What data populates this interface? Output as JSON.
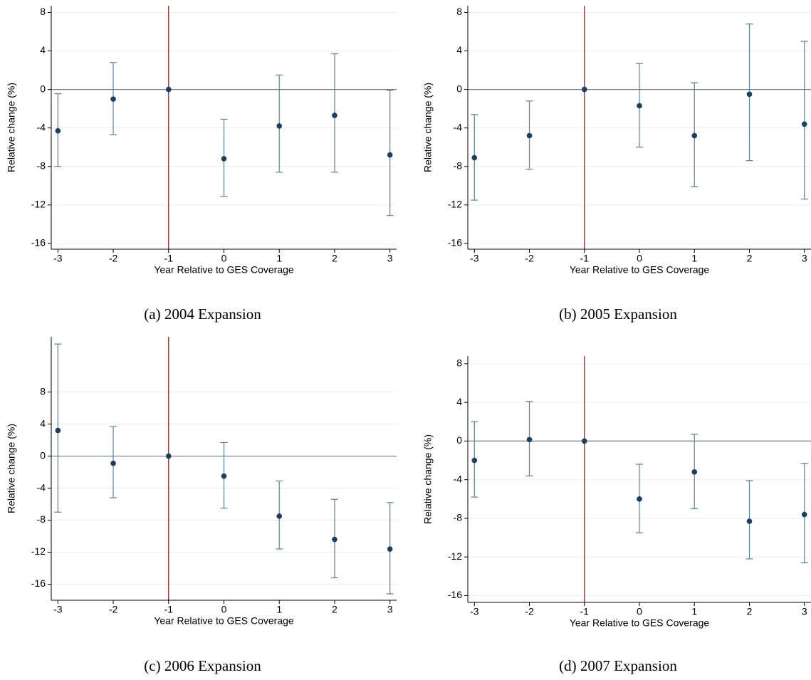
{
  "chart_data": [
    {
      "type": "errorbar",
      "title": "(a) 2004 Expansion",
      "xlabel": "Year Relative to GES Coverage",
      "ylabel": "Relative change (%)",
      "x": [
        -3,
        -2,
        -1,
        0,
        1,
        2,
        3
      ],
      "values": [
        -4.3,
        -1.0,
        0,
        -7.2,
        -3.8,
        -2.7,
        -6.8
      ],
      "lower": [
        -8.0,
        -4.7,
        null,
        -11.1,
        -8.6,
        -8.6,
        -13.1
      ],
      "upper": [
        -0.45,
        2.8,
        null,
        -3.1,
        1.5,
        3.7,
        -0.1
      ],
      "xlim": [
        -3.12,
        3.12
      ],
      "xticks": [
        -3,
        -2,
        -1,
        0,
        1,
        2,
        3
      ],
      "ylim": [
        -16.6,
        8.7
      ],
      "yticks": [
        -16,
        -12,
        -8,
        -4,
        0,
        4,
        8
      ],
      "color": "#1a3f63",
      "ci_color": "#5a82a3",
      "reference_x": -1,
      "reference_x_color": "#8b1a1a",
      "reference_y": 0,
      "grid": true
    },
    {
      "type": "errorbar",
      "title": "(b) 2005 Expansion",
      "xlabel": "Year Relative to GES Coverage",
      "ylabel": "Relative change (%)",
      "x": [
        -3,
        -2,
        -1,
        0,
        1,
        2,
        3
      ],
      "values": [
        -7.1,
        -4.8,
        0,
        -1.7,
        -4.8,
        -0.5,
        -3.6
      ],
      "lower": [
        -11.5,
        -8.3,
        null,
        -6.0,
        -10.1,
        -7.4,
        -11.4
      ],
      "upper": [
        -2.6,
        -1.2,
        null,
        2.7,
        0.7,
        6.8,
        5.0
      ],
      "xlim": [
        -3.12,
        3.12
      ],
      "xticks": [
        -3,
        -2,
        -1,
        0,
        1,
        2,
        3
      ],
      "ylim": [
        -16.6,
        8.7
      ],
      "yticks": [
        -16,
        -12,
        -8,
        -4,
        0,
        4,
        8
      ],
      "color": "#1a3f63",
      "ci_color": "#5a82a3",
      "reference_x": -1,
      "reference_x_color": "#8b1a1a",
      "reference_y": 0,
      "grid": true
    },
    {
      "type": "errorbar",
      "title": "(c) 2006 Expansion",
      "xlabel": "Year Relative to GES Coverage",
      "ylabel": "Relative change (%)",
      "x": [
        -3,
        -2,
        -1,
        0,
        1,
        2,
        3
      ],
      "values": [
        3.2,
        -0.9,
        0,
        -2.5,
        -7.5,
        -10.4,
        -11.6
      ],
      "lower": [
        -7.0,
        -5.2,
        null,
        -6.5,
        -11.6,
        -15.2,
        -17.2
      ],
      "upper": [
        14.0,
        3.7,
        null,
        1.7,
        -3.1,
        -5.4,
        -5.8
      ],
      "xlim": [
        -3.12,
        3.12
      ],
      "xticks": [
        -3,
        -2,
        -1,
        0,
        1,
        2,
        3
      ],
      "ylim": [
        -18,
        14.9
      ],
      "yticks": [
        -16,
        -12,
        -8,
        -4,
        0,
        4,
        8
      ],
      "color": "#1a3f63",
      "ci_color": "#5a82a3",
      "reference_x": -1,
      "reference_x_color": "#8b1a1a",
      "reference_y": 0,
      "grid": true
    },
    {
      "type": "errorbar",
      "title": "(d) 2007 Expansion",
      "xlabel": "Year Relative to GES Coverage",
      "ylabel": "Relative change (%)",
      "x": [
        -3,
        -2,
        -1,
        0,
        1,
        2,
        3
      ],
      "values": [
        -2.0,
        0.15,
        0,
        -6.0,
        -3.2,
        -8.3,
        -7.6
      ],
      "lower": [
        -5.8,
        -3.6,
        null,
        -9.5,
        -7.0,
        -12.2,
        -12.6
      ],
      "upper": [
        2.0,
        4.1,
        null,
        -2.4,
        0.7,
        -4.1,
        -2.3
      ],
      "xlim": [
        -3.12,
        3.12
      ],
      "xticks": [
        -3,
        -2,
        -1,
        0,
        1,
        2,
        3
      ],
      "ylim": [
        -16.7,
        8.8
      ],
      "yticks": [
        -16,
        -12,
        -8,
        -4,
        0,
        4,
        8
      ],
      "color": "#1a3f63",
      "ci_color": "#5a82a3",
      "reference_x": -1,
      "reference_x_color": "#8b1a1a",
      "reference_y": 0,
      "grid": true
    }
  ]
}
